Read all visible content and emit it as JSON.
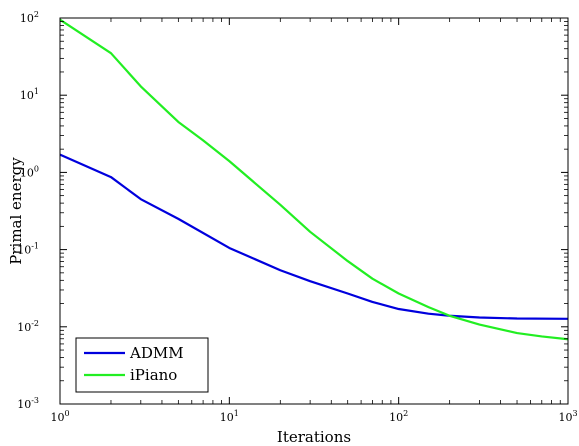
{
  "chart_data": {
    "type": "line",
    "title": "",
    "xlabel": "Iterations",
    "ylabel": "Primal energy",
    "xscale": "log",
    "yscale": "log",
    "xlim": [
      1,
      1000
    ],
    "ylim": [
      0.001,
      100
    ],
    "x_ticks": [
      {
        "value": 1,
        "base": "10",
        "exp": "0"
      },
      {
        "value": 10,
        "base": "10",
        "exp": "1"
      },
      {
        "value": 100,
        "base": "10",
        "exp": "2"
      },
      {
        "value": 1000,
        "base": "10",
        "exp": "3"
      }
    ],
    "y_ticks": [
      {
        "value": 0.001,
        "base": "10",
        "exp": "-3"
      },
      {
        "value": 0.01,
        "base": "10",
        "exp": "-2"
      },
      {
        "value": 0.1,
        "base": "10",
        "exp": "-1"
      },
      {
        "value": 1,
        "base": "10",
        "exp": "0"
      },
      {
        "value": 10,
        "base": "10",
        "exp": "1"
      },
      {
        "value": 100,
        "base": "10",
        "exp": "2"
      }
    ],
    "grid": false,
    "legend_position": "bottom-left",
    "series": [
      {
        "name": "ADMM",
        "color": "#0000dd",
        "x": [
          1,
          2,
          3,
          5,
          10,
          20,
          30,
          50,
          70,
          100,
          150,
          200,
          300,
          500,
          1000
        ],
        "y": [
          1.7,
          0.87,
          0.45,
          0.25,
          0.105,
          0.054,
          0.039,
          0.027,
          0.021,
          0.017,
          0.0148,
          0.0139,
          0.0132,
          0.0128,
          0.0127
        ]
      },
      {
        "name": "iPiano",
        "color": "#22ee22",
        "x": [
          1,
          2,
          3,
          5,
          7,
          10,
          20,
          30,
          50,
          70,
          100,
          150,
          200,
          300,
          500,
          700,
          1000
        ],
        "y": [
          95,
          35,
          13,
          4.5,
          2.6,
          1.4,
          0.38,
          0.17,
          0.071,
          0.042,
          0.027,
          0.018,
          0.0139,
          0.0107,
          0.0083,
          0.0075,
          0.0069
        ]
      }
    ]
  }
}
